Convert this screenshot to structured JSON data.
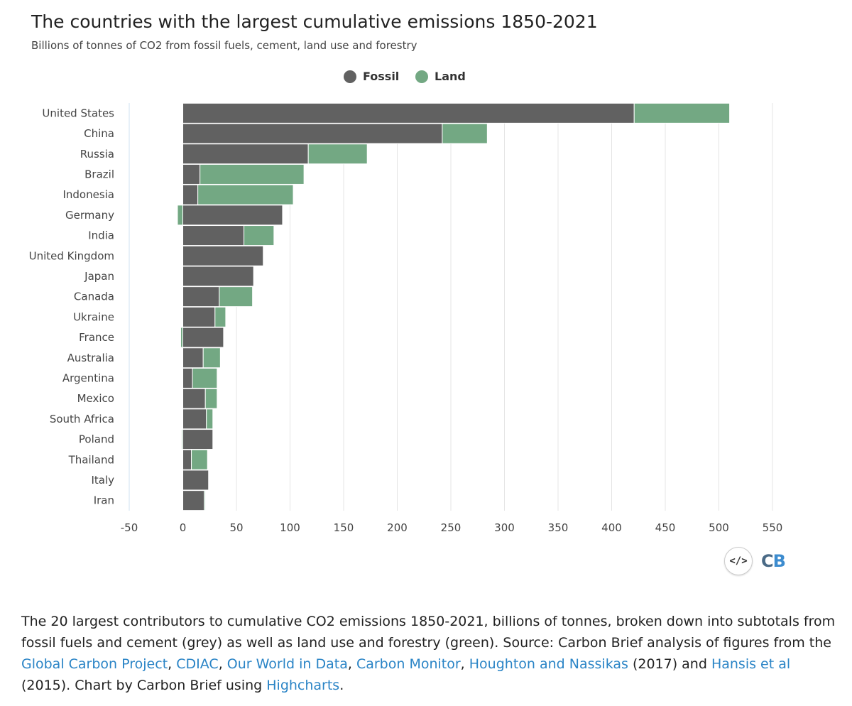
{
  "header": {
    "title": "The countries with the largest cumulative emissions 1850-2021",
    "subtitle": "Billions of tonnes of CO2 from fossil fuels, cement, land use and forestry"
  },
  "legend": [
    {
      "label": "Fossil",
      "color": "#616161"
    },
    {
      "label": "Land",
      "color": "#73a883"
    }
  ],
  "chart_data": {
    "type": "bar",
    "orientation": "horizontal",
    "stacked": true,
    "title": "The countries with the largest cumulative emissions 1850-2021",
    "subtitle": "Billions of tonnes of CO2 from fossil fuels, cement, land use and forestry",
    "categories": [
      "United States",
      "China",
      "Russia",
      "Brazil",
      "Indonesia",
      "Germany",
      "India",
      "United Kingdom",
      "Japan",
      "Canada",
      "Ukraine",
      "France",
      "Australia",
      "Argentina",
      "Mexico",
      "South Africa",
      "Poland",
      "Thailand",
      "Italy",
      "Iran"
    ],
    "series": [
      {
        "name": "Fossil",
        "color": "#616161",
        "values": [
          421,
          242,
          117,
          16,
          14,
          93,
          57,
          75,
          66,
          34,
          30,
          38,
          19,
          9,
          21,
          22,
          28,
          8,
          24,
          20
        ]
      },
      {
        "name": "Land",
        "color": "#73a883",
        "values": [
          89,
          42,
          55,
          97,
          89,
          -5,
          28,
          0,
          0,
          31,
          10,
          -2,
          16,
          23,
          11,
          6,
          -1,
          15,
          0,
          1
        ]
      }
    ],
    "xlim": [
      -50,
      550
    ],
    "xticks": [
      -50,
      0,
      50,
      100,
      150,
      200,
      250,
      300,
      350,
      400,
      450,
      500,
      550
    ],
    "grid": true,
    "legend_position": "top-center"
  },
  "logo": {
    "embed_label": "</>",
    "brand_c": "C",
    "brand_b": "B"
  },
  "caption": {
    "part1": "The 20 largest contributors to cumulative CO2 emissions 1850-2021, billions of tonnes, broken down into subtotals from fossil fuels and cement (grey) as well as land use and forestry (green). Source: Carbon Brief analysis of figures from the ",
    "link1": "Global Carbon Project",
    "sep1": ", ",
    "link2": "CDIAC",
    "sep2": ", ",
    "link3": "Our World in Data",
    "sep3": ", ",
    "link4": "Carbon Monitor",
    "sep4": ", ",
    "link5": "Houghton and Nassikas",
    "part2": " (2017) and ",
    "link6": "Hansis et al",
    "part3": " (2015). Chart by Carbon Brief using ",
    "link7": "Highcharts",
    "part4": "."
  }
}
